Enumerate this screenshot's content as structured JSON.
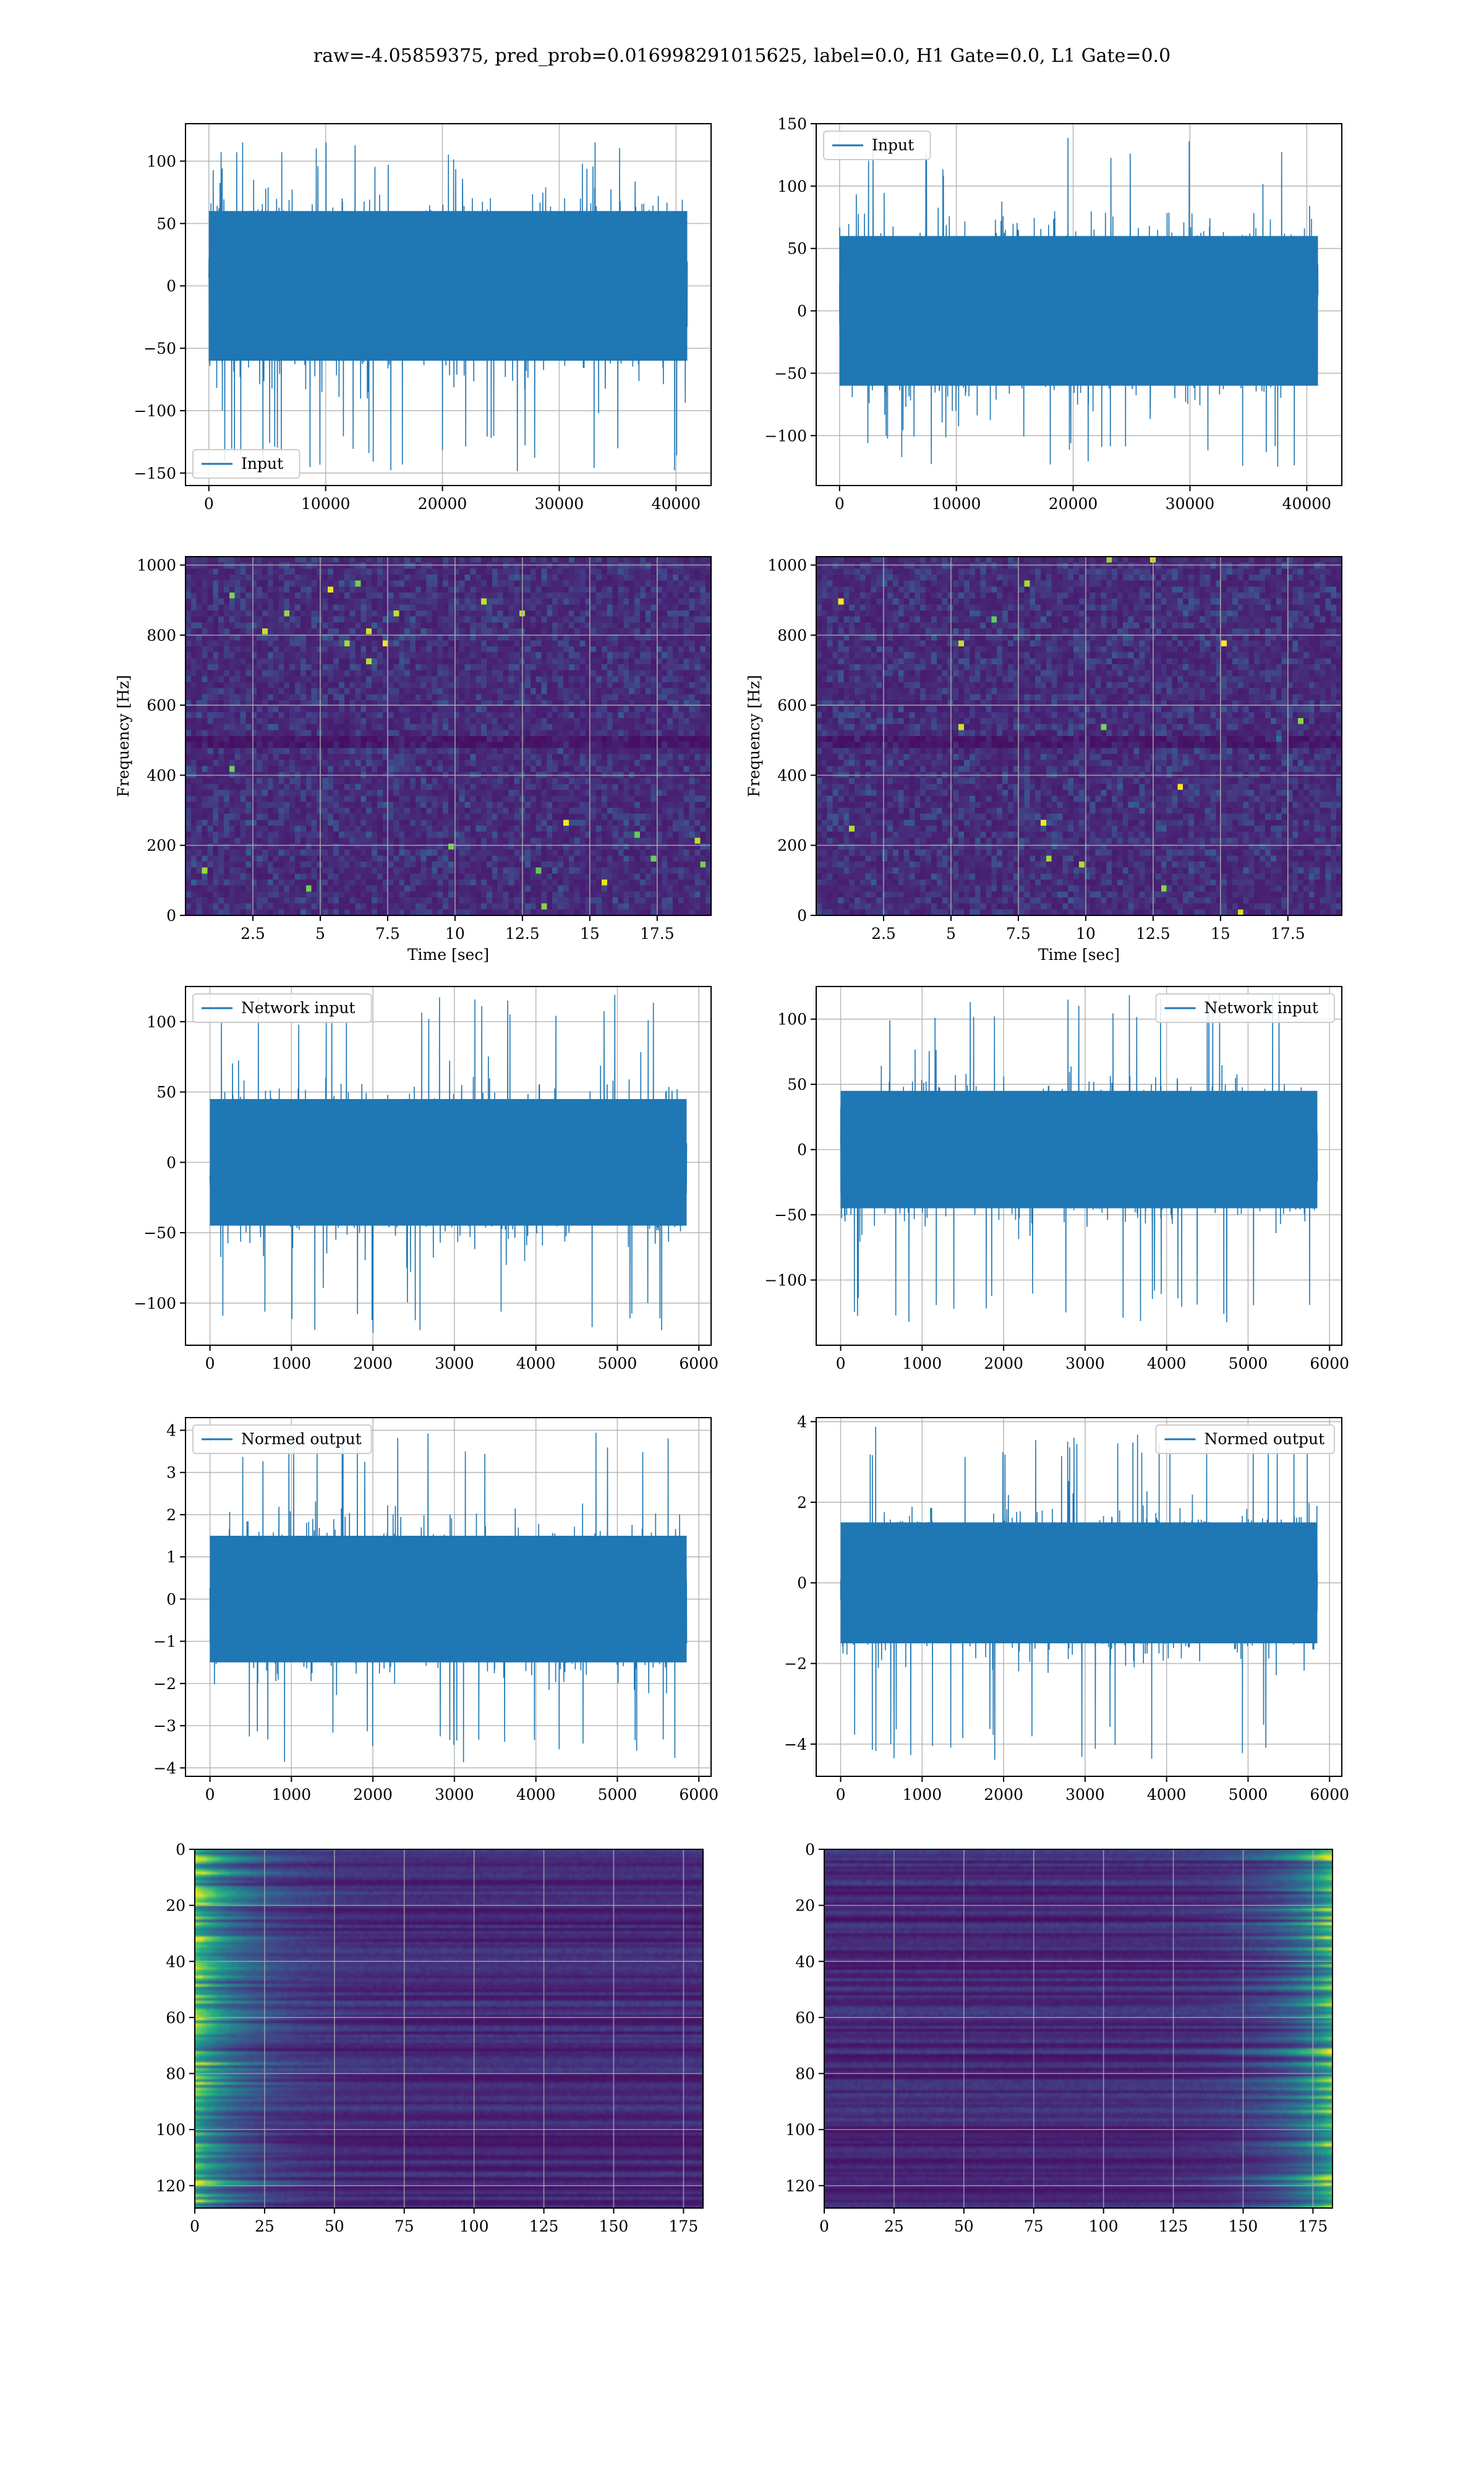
{
  "figure_title": "raw=-4.05859375, pred_prob=0.016998291015625, label=0.0, H1 Gate=0.0, L1 Gate=0.0",
  "colors": {
    "line": "#1f77b4",
    "grid": "#b0b0b0",
    "axis": "#000000",
    "viridis_low": "#440154",
    "viridis_high": "#fde725"
  },
  "chart_data": [
    {
      "id": "input-left",
      "type": "line",
      "series": [
        {
          "name": "Input"
        }
      ],
      "legend": "lower-left",
      "xlim": [
        -2000,
        43000
      ],
      "ylim": [
        -160,
        130
      ],
      "xticks": [
        0,
        10000,
        20000,
        30000,
        40000
      ],
      "yticks": [
        -150,
        -100,
        -50,
        0,
        50,
        100
      ],
      "x_range": [
        0,
        40960
      ],
      "band": [
        -60,
        60
      ],
      "extremes": [
        -150,
        115
      ]
    },
    {
      "id": "input-right",
      "type": "line",
      "series": [
        {
          "name": "Input"
        }
      ],
      "legend": "upper-left",
      "xlim": [
        -2000,
        43000
      ],
      "ylim": [
        -140,
        150
      ],
      "xticks": [
        0,
        10000,
        20000,
        30000,
        40000
      ],
      "yticks": [
        -100,
        -50,
        0,
        50,
        100,
        150
      ],
      "x_range": [
        0,
        40960
      ],
      "band": [
        -60,
        60
      ],
      "extremes": [
        -125,
        140
      ]
    },
    {
      "id": "spectrogram-left",
      "type": "heatmap",
      "xlabel": "Time [sec]",
      "ylabel": "Frequency [Hz]",
      "xlim": [
        0,
        19.5
      ],
      "ylim": [
        0,
        1024
      ],
      "xticks": [
        2.5,
        5.0,
        7.5,
        10.0,
        12.5,
        15.0,
        17.5
      ],
      "yticks": [
        0,
        200,
        400,
        600,
        800,
        1000
      ],
      "colormap": "viridis"
    },
    {
      "id": "spectrogram-right",
      "type": "heatmap",
      "xlabel": "Time [sec]",
      "ylabel": "Frequency [Hz]",
      "xlim": [
        0,
        19.5
      ],
      "ylim": [
        0,
        1024
      ],
      "xticks": [
        2.5,
        5.0,
        7.5,
        10.0,
        12.5,
        15.0,
        17.5
      ],
      "yticks": [
        0,
        200,
        400,
        600,
        800,
        1000
      ],
      "colormap": "viridis"
    },
    {
      "id": "network-input-left",
      "type": "line",
      "series": [
        {
          "name": "Network input"
        }
      ],
      "legend": "upper-left",
      "xlim": [
        -300,
        6150
      ],
      "ylim": [
        -130,
        125
      ],
      "xticks": [
        0,
        1000,
        2000,
        3000,
        4000,
        5000,
        6000
      ],
      "yticks": [
        -100,
        -50,
        0,
        50,
        100
      ],
      "x_range": [
        0,
        5850
      ],
      "band": [
        -45,
        45
      ],
      "extremes": [
        -122,
        120
      ]
    },
    {
      "id": "network-input-right",
      "type": "line",
      "series": [
        {
          "name": "Network input"
        }
      ],
      "legend": "upper-right",
      "xlim": [
        -300,
        6150
      ],
      "ylim": [
        -150,
        125
      ],
      "xticks": [
        0,
        1000,
        2000,
        3000,
        4000,
        5000,
        6000
      ],
      "yticks": [
        -100,
        -50,
        0,
        50,
        100
      ],
      "x_range": [
        0,
        5850
      ],
      "band": [
        -45,
        45
      ],
      "extremes": [
        -135,
        120
      ]
    },
    {
      "id": "normed-output-left",
      "type": "line",
      "series": [
        {
          "name": "Normed output"
        }
      ],
      "legend": "upper-left",
      "xlim": [
        -300,
        6150
      ],
      "ylim": [
        -4.2,
        4.3
      ],
      "xticks": [
        0,
        1000,
        2000,
        3000,
        4000,
        5000,
        6000
      ],
      "yticks": [
        -4,
        -3,
        -2,
        -1,
        0,
        1,
        2,
        3,
        4
      ],
      "x_range": [
        0,
        5850
      ],
      "band": [
        -1.5,
        1.5
      ],
      "extremes": [
        -3.9,
        4.0
      ]
    },
    {
      "id": "normed-output-right",
      "type": "line",
      "series": [
        {
          "name": "Normed output"
        }
      ],
      "legend": "upper-right",
      "xlim": [
        -300,
        6150
      ],
      "ylim": [
        -4.8,
        4.1
      ],
      "xticks": [
        0,
        1000,
        2000,
        3000,
        4000,
        5000,
        6000
      ],
      "yticks": [
        -4,
        -2,
        0,
        2,
        4
      ],
      "x_range": [
        0,
        5850
      ],
      "band": [
        -1.5,
        1.5
      ],
      "extremes": [
        -4.4,
        3.9
      ]
    },
    {
      "id": "feature-map-left",
      "type": "heatmap",
      "xlim": [
        0,
        182
      ],
      "ylim": [
        128,
        0
      ],
      "xticks": [
        0,
        25,
        50,
        75,
        100,
        125,
        150,
        175
      ],
      "yticks": [
        0,
        20,
        40,
        60,
        80,
        100,
        120
      ],
      "colormap": "viridis",
      "bright_side": "left"
    },
    {
      "id": "feature-map-right",
      "type": "heatmap",
      "xlim": [
        0,
        182
      ],
      "ylim": [
        128,
        0
      ],
      "xticks": [
        0,
        25,
        50,
        75,
        100,
        125,
        150,
        175
      ],
      "yticks": [
        0,
        20,
        40,
        60,
        80,
        100,
        120
      ],
      "colormap": "viridis",
      "bright_side": "right"
    }
  ]
}
